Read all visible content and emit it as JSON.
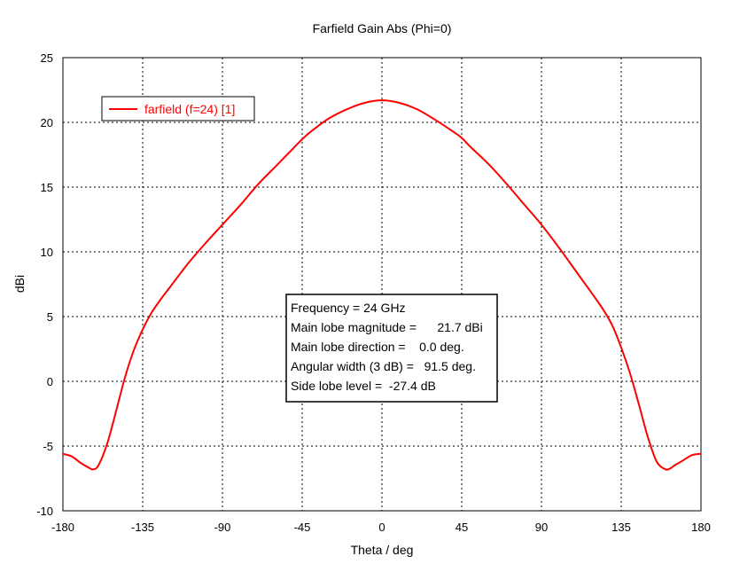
{
  "chart_data": {
    "type": "line",
    "title": "Farfield Gain Abs (Phi=0)",
    "xlabel": "Theta / deg",
    "ylabel": "dBi",
    "xlim": [
      -180,
      180
    ],
    "ylim": [
      -10,
      25
    ],
    "xticks": [
      -180,
      -135,
      -90,
      -45,
      0,
      45,
      90,
      135,
      180
    ],
    "xtick_labels": [
      "-180",
      "-135",
      "-90",
      "-45",
      "0",
      "45",
      "90",
      "135",
      "180"
    ],
    "yticks": [
      -10,
      -5,
      0,
      5,
      10,
      15,
      20,
      25
    ],
    "ytick_labels": [
      "-10",
      "-5",
      "0",
      "5",
      "10",
      "15",
      "20",
      "25"
    ],
    "grid": true,
    "grid_style": "dotted",
    "legend_placement": "top-left",
    "series": [
      {
        "name": "farfield (f=24) [1]",
        "color": "#ff0000",
        "x": [
          -180,
          -175,
          -170,
          -165,
          -163,
          -160,
          -155,
          -150,
          -145,
          -140,
          -135,
          -130,
          -125,
          -120,
          -110,
          -100,
          -90,
          -80,
          -70,
          -60,
          -50,
          -45,
          -40,
          -30,
          -20,
          -10,
          0,
          10,
          20,
          30,
          40,
          45,
          50,
          60,
          70,
          80,
          90,
          100,
          110,
          120,
          125,
          130,
          135,
          140,
          145,
          150,
          155,
          160,
          163,
          165,
          170,
          175,
          180
        ],
        "y": [
          -5.6,
          -5.8,
          -6.3,
          -6.7,
          -6.8,
          -6.5,
          -4.8,
          -2.3,
          0.3,
          2.4,
          4.0,
          5.3,
          6.3,
          7.2,
          9.0,
          10.6,
          12.1,
          13.6,
          15.2,
          16.6,
          18.0,
          18.7,
          19.3,
          20.3,
          21.0,
          21.5,
          21.7,
          21.5,
          21.0,
          20.2,
          19.3,
          18.8,
          18.1,
          16.8,
          15.3,
          13.7,
          12.1,
          10.3,
          8.4,
          6.5,
          5.5,
          4.3,
          2.6,
          0.6,
          -1.8,
          -4.3,
          -6.2,
          -6.8,
          -6.7,
          -6.5,
          -6.1,
          -5.7,
          -5.6
        ]
      }
    ],
    "info_box": {
      "lines": [
        "Frequency = 24 GHz",
        "Main lobe magnitude =      21.7 dBi",
        "Main lobe direction =    0.0 deg.",
        "Angular width (3 dB) =   91.5 deg.",
        "Side lobe level =  -27.4 dB"
      ]
    }
  }
}
